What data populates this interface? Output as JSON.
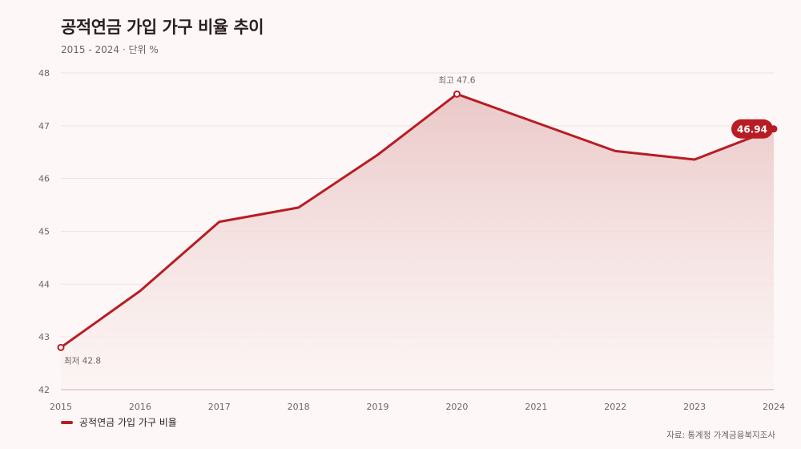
{
  "header": {
    "title": "공적연금 가입 가구 비율 추이",
    "subtitle": "2015 - 2024 · 단위 %"
  },
  "legend": {
    "label": "공적연금 가입 가구 비율"
  },
  "source": "자료: 통계청 가계금융복지조사",
  "colors": {
    "line": "#b81d24",
    "area_top": "#e9c3c3",
    "area_bottom": "#fbf3f2",
    "grid": "#ece3e2",
    "background": "#fdf8f7"
  },
  "chart_data": {
    "type": "area",
    "title": "공적연금 가입 가구 비율 추이",
    "subtitle": "2015 - 2024 · 단위 %",
    "xlabel": "",
    "ylabel": "",
    "x": [
      "2015",
      "2016",
      "2017",
      "2018",
      "2019",
      "2020",
      "2021",
      "2022",
      "2023",
      "2024"
    ],
    "series": [
      {
        "name": "공적연금 가입 가구 비율",
        "values": [
          42.8,
          43.87,
          45.18,
          45.45,
          46.45,
          47.6,
          47.06,
          46.52,
          46.36,
          46.94
        ]
      }
    ],
    "ylim": [
      42,
      48
    ],
    "yticks": [
      "42",
      "43",
      "44",
      "45",
      "46",
      "47",
      "48"
    ],
    "grid": true,
    "legend_position": "bottom-left",
    "annotations": [
      {
        "label": "최저 42.8",
        "x": "2015",
        "y": 42.8
      },
      {
        "label": "최고 47.6",
        "x": "2020",
        "y": 47.6
      }
    ],
    "end_label": {
      "label": "46.94",
      "x": "2024",
      "y": 46.94
    }
  }
}
